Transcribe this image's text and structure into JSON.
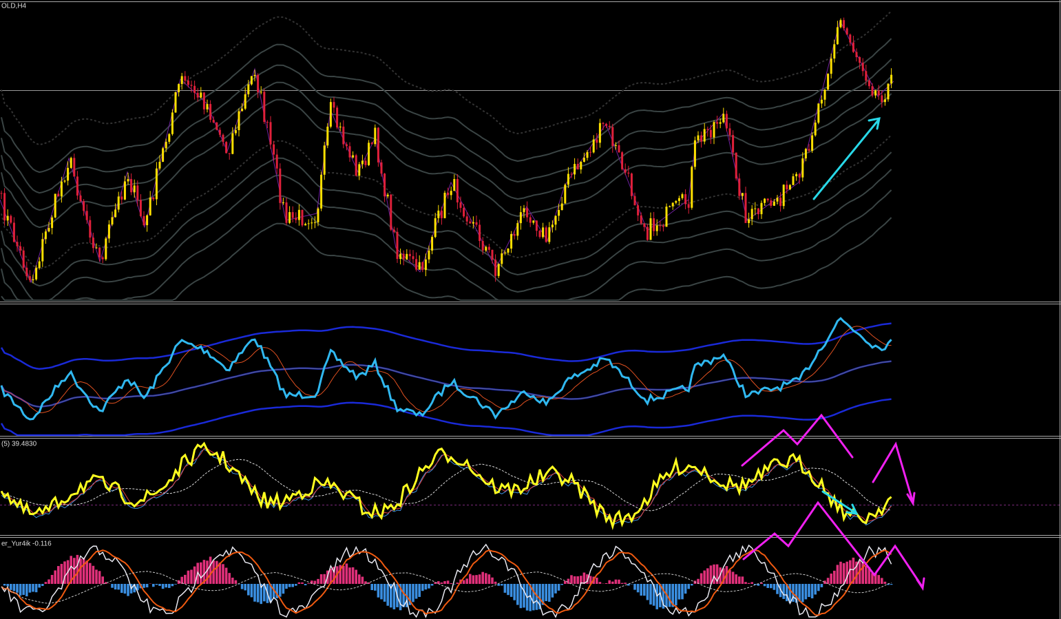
{
  "panels": [
    {
      "label": "OLD,H4"
    },
    {
      "label": "(5) 39.4830"
    },
    {
      "label": "er_Yur4ik -0.116"
    }
  ]
}
